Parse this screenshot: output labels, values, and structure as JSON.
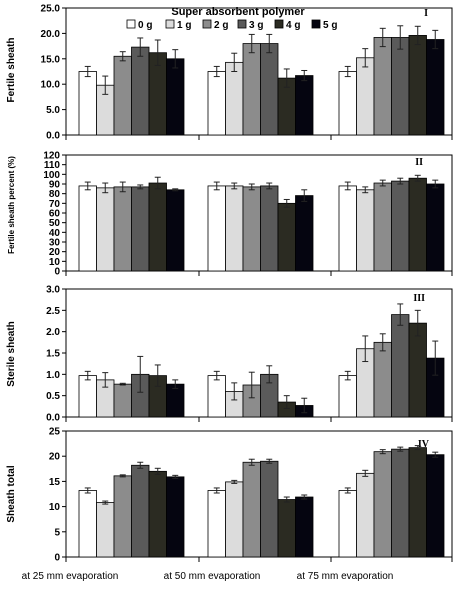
{
  "chart_data": [
    {
      "type": "bar",
      "panel_label": "I",
      "ylabel": "Fertile sheath",
      "ylim": [
        0,
        25
      ],
      "yticks": [
        "0.0",
        "5.0",
        "10.0",
        "15.0",
        "20.0",
        "25.0"
      ],
      "categories": [
        "at 25 mm evaporation",
        "at 50 mm evaporation",
        "at 75 mm evaporation"
      ],
      "series": [
        {
          "name": "0 g",
          "values": [
            12.5,
            12.5,
            12.5
          ],
          "errors": [
            1.0,
            1.0,
            1.0
          ]
        },
        {
          "name": "1 g",
          "values": [
            9.8,
            14.3,
            15.2
          ],
          "errors": [
            1.8,
            1.8,
            1.8
          ]
        },
        {
          "name": "2 g",
          "values": [
            15.5,
            18.0,
            19.2
          ],
          "errors": [
            0.9,
            1.8,
            1.8
          ]
        },
        {
          "name": "3 g",
          "values": [
            17.3,
            18.0,
            19.2
          ],
          "errors": [
            1.8,
            1.8,
            2.3
          ]
        },
        {
          "name": "4 g",
          "values": [
            16.2,
            11.2,
            19.6
          ],
          "errors": [
            2.5,
            1.8,
            1.8
          ]
        },
        {
          "name": "5 g",
          "values": [
            15.0,
            11.7,
            18.8
          ],
          "errors": [
            1.8,
            1.0,
            1.8
          ]
        }
      ]
    },
    {
      "type": "bar",
      "panel_label": "II",
      "ylabel": "Fertile sheath percent (%)",
      "ylim": [
        0,
        120
      ],
      "yticks": [
        "0",
        "10",
        "20",
        "30",
        "40",
        "50",
        "60",
        "70",
        "80",
        "90",
        "100",
        "110",
        "120"
      ],
      "categories": [
        "at 25 mm evaporation",
        "at 50 mm evaporation",
        "at 75 mm evaporation"
      ],
      "series": [
        {
          "name": "0 g",
          "values": [
            88,
            88,
            88
          ],
          "errors": [
            4,
            4,
            4
          ]
        },
        {
          "name": "1 g",
          "values": [
            86,
            88,
            84
          ],
          "errors": [
            5,
            3,
            3
          ]
        },
        {
          "name": "2 g",
          "values": [
            87,
            87,
            91
          ],
          "errors": [
            5,
            3,
            3
          ]
        },
        {
          "name": "3 g",
          "values": [
            87,
            88,
            93
          ],
          "errors": [
            2,
            3,
            3
          ]
        },
        {
          "name": "4 g",
          "values": [
            91,
            70,
            96
          ],
          "errors": [
            6,
            4,
            3
          ]
        },
        {
          "name": "5 g",
          "values": [
            84,
            78,
            90
          ],
          "errors": [
            1,
            6,
            4
          ]
        }
      ]
    },
    {
      "type": "bar",
      "panel_label": "III",
      "ylabel": "Sterile sheath",
      "ylim": [
        0,
        3
      ],
      "yticks": [
        "0.0",
        "0.5",
        "1.0",
        "1.5",
        "2.0",
        "2.5",
        "3.0"
      ],
      "categories": [
        "at 25 mm evaporation",
        "at 50 mm evaporation",
        "at 75 mm evaporation"
      ],
      "series": [
        {
          "name": "0 g",
          "values": [
            0.97,
            0.97,
            0.97
          ],
          "errors": [
            0.1,
            0.1,
            0.1
          ]
        },
        {
          "name": "1 g",
          "values": [
            0.87,
            0.6,
            1.6
          ],
          "errors": [
            0.17,
            0.2,
            0.3
          ]
        },
        {
          "name": "2 g",
          "values": [
            0.77,
            0.75,
            1.75
          ],
          "errors": [
            0.02,
            0.3,
            0.2
          ]
        },
        {
          "name": "3 g",
          "values": [
            1.0,
            1.0,
            2.4
          ],
          "errors": [
            0.42,
            0.2,
            0.25
          ]
        },
        {
          "name": "4 g",
          "values": [
            0.97,
            0.35,
            2.2
          ],
          "errors": [
            0.25,
            0.15,
            0.3
          ]
        },
        {
          "name": "5 g",
          "values": [
            0.77,
            0.27,
            1.38
          ],
          "errors": [
            0.1,
            0.17,
            0.4
          ]
        }
      ]
    },
    {
      "type": "bar",
      "panel_label": "IV",
      "ylabel": "Sheath total",
      "ylim": [
        0,
        25
      ],
      "yticks": [
        "0",
        "5",
        "10",
        "15",
        "20",
        "25"
      ],
      "categories": [
        "at 25 mm evaporation",
        "at 50 mm evaporation",
        "at 75 mm evaporation"
      ],
      "series": [
        {
          "name": "0 g",
          "values": [
            13.2,
            13.2,
            13.2
          ],
          "errors": [
            0.5,
            0.5,
            0.5
          ]
        },
        {
          "name": "1 g",
          "values": [
            10.8,
            14.9,
            16.6
          ],
          "errors": [
            0.3,
            0.3,
            0.6
          ]
        },
        {
          "name": "2 g",
          "values": [
            16.1,
            18.8,
            20.9
          ],
          "errors": [
            0.2,
            0.6,
            0.4
          ]
        },
        {
          "name": "3 g",
          "values": [
            18.2,
            19.0,
            21.4
          ],
          "errors": [
            0.6,
            0.4,
            0.4
          ]
        },
        {
          "name": "4 g",
          "values": [
            17.0,
            11.4,
            21.7
          ],
          "errors": [
            0.6,
            0.5,
            0.4
          ]
        },
        {
          "name": "5 g",
          "values": [
            15.9,
            11.9,
            20.3
          ],
          "errors": [
            0.3,
            0.4,
            0.5
          ]
        }
      ]
    }
  ],
  "legend": {
    "title": "Super absorbent polymer",
    "entries": [
      "0 g",
      "1 g",
      "2 g",
      "3 g",
      "4 g",
      "5 g"
    ],
    "colors": [
      "#ffffff",
      "#dcdcdc",
      "#8c8c8c",
      "#5a5a5a",
      "#2b2b22",
      "#050510"
    ]
  },
  "x_labels": [
    "at 25 mm evaporation",
    "at 50 mm evaporation",
    "at 75 mm evaporation"
  ]
}
